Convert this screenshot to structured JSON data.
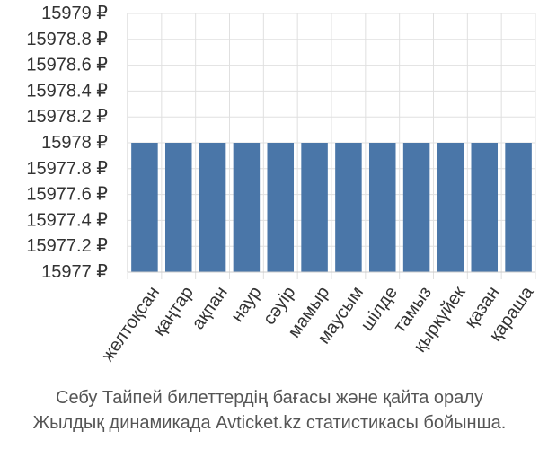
{
  "chart_data": {
    "type": "bar",
    "categories": [
      "желтоқсан",
      "қаңтар",
      "ақпан",
      "наур",
      "сәуір",
      "мамыр",
      "маусым",
      "шілде",
      "тамыз",
      "қыркүйек",
      "қазан",
      "қараша"
    ],
    "values": [
      15978,
      15978,
      15978,
      15978,
      15978,
      15978,
      15978,
      15978,
      15978,
      15978,
      15978,
      15978
    ],
    "ylim": [
      15977,
      15979
    ],
    "yticks": [
      "15977 ₽",
      "15977.2 ₽",
      "15977.4 ₽",
      "15977.6 ₽",
      "15977.8 ₽",
      "15978 ₽",
      "15978.2 ₽",
      "15978.4 ₽",
      "15978.6 ₽",
      "15978.8 ₽",
      "15979 ₽"
    ],
    "ytick_values": [
      15977,
      15977.2,
      15977.4,
      15977.6,
      15977.8,
      15978,
      15978.2,
      15978.4,
      15978.6,
      15978.8,
      15979
    ],
    "grid": true,
    "bar_color": "#4a76a8",
    "grid_color": "#e0e0e0"
  },
  "caption": {
    "line1": "Себу Тайпей билеттердің бағасы және қайта оралу",
    "line2": "Жылдық динамикада Avticket.kz статистикасы бойынша."
  }
}
